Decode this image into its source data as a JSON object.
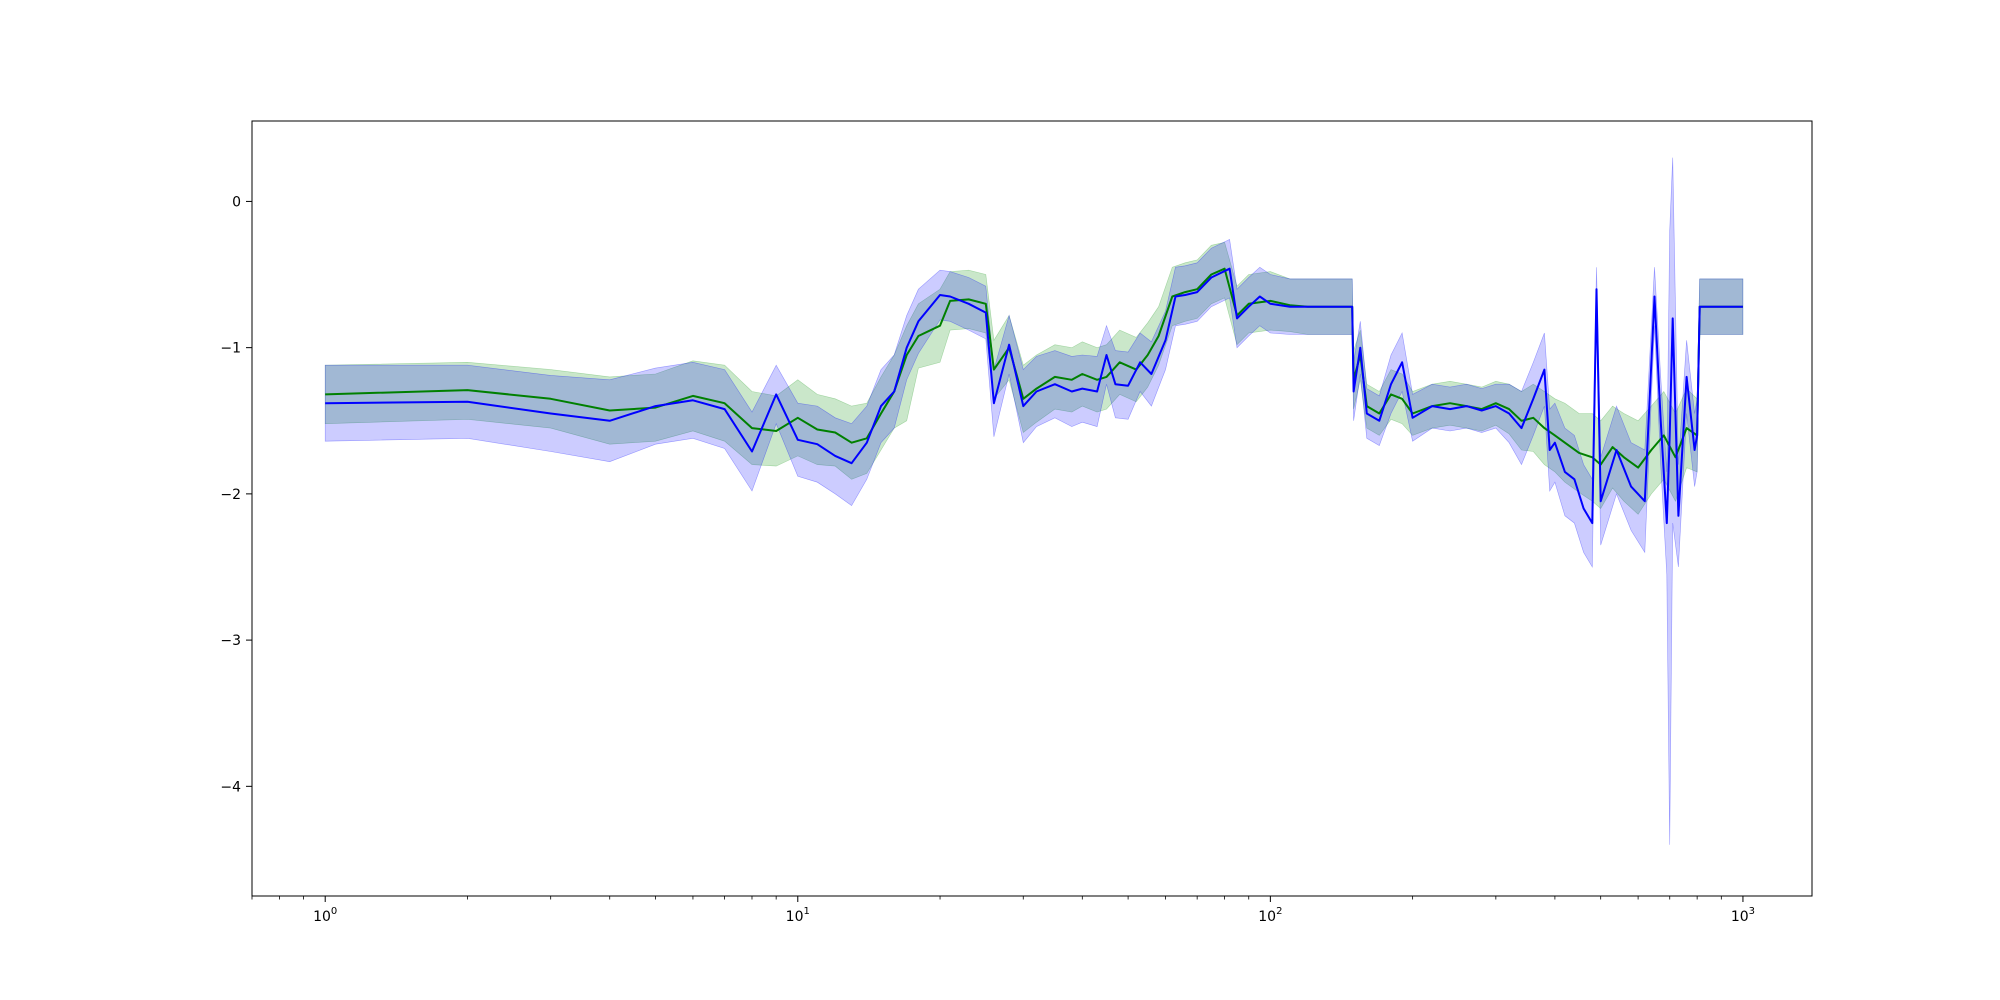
{
  "chart_data": {
    "type": "line",
    "title": "",
    "xlabel": "",
    "ylabel": "",
    "x_scale": "log",
    "xlim": [
      0.7,
      1400
    ],
    "ylim": [
      -4.75,
      0.55
    ],
    "x_ticks": [
      {
        "value": 1,
        "base": "10",
        "exp": "0"
      },
      {
        "value": 10,
        "base": "10",
        "exp": "1"
      },
      {
        "value": 100,
        "base": "10",
        "exp": "2"
      },
      {
        "value": 1000,
        "base": "10",
        "exp": "3"
      }
    ],
    "y_ticks": [
      {
        "value": 0,
        "label": "0"
      },
      {
        "value": -1,
        "label": "−1"
      },
      {
        "value": -2,
        "label": "−2"
      },
      {
        "value": -3,
        "label": "−3"
      },
      {
        "value": -4,
        "label": "−4"
      }
    ],
    "grid": false,
    "legend": "none",
    "series": [
      {
        "color": "#008000",
        "band_color": "#2ca02c",
        "band_opacity": 0.25,
        "points": [
          [
            1,
            -1.32,
            -1.12,
            -1.52
          ],
          [
            2,
            -1.29,
            -1.1,
            -1.49
          ],
          [
            3,
            -1.35,
            -1.15,
            -1.55
          ],
          [
            4,
            -1.43,
            -1.2,
            -1.66
          ],
          [
            5,
            -1.41,
            -1.18,
            -1.64
          ],
          [
            6,
            -1.33,
            -1.09,
            -1.57
          ],
          [
            7,
            -1.38,
            -1.12,
            -1.64
          ],
          [
            8,
            -1.55,
            -1.3,
            -1.8
          ],
          [
            9,
            -1.57,
            -1.33,
            -1.81
          ],
          [
            10,
            -1.48,
            -1.22,
            -1.74
          ],
          [
            11,
            -1.56,
            -1.32,
            -1.8
          ],
          [
            12,
            -1.58,
            -1.35,
            -1.81
          ],
          [
            13,
            -1.65,
            -1.4,
            -1.9
          ],
          [
            14,
            -1.62,
            -1.38,
            -1.86
          ],
          [
            15,
            -1.45,
            -1.2,
            -1.7
          ],
          [
            16,
            -1.3,
            -1.05,
            -1.55
          ],
          [
            17,
            -1.05,
            -0.85,
            -1.5
          ],
          [
            18,
            -0.92,
            -0.7,
            -1.14
          ],
          [
            20,
            -0.85,
            -0.6,
            -1.1
          ],
          [
            21,
            -0.68,
            -0.48,
            -0.88
          ],
          [
            23,
            -0.67,
            -0.47,
            -0.87
          ],
          [
            25,
            -0.7,
            -0.5,
            -0.9
          ],
          [
            26,
            -1.15,
            -0.95,
            -1.35
          ],
          [
            28,
            -1.0,
            -0.78,
            -1.22
          ],
          [
            30,
            -1.35,
            -1.12,
            -1.58
          ],
          [
            32,
            -1.28,
            -1.05,
            -1.51
          ],
          [
            35,
            -1.2,
            -0.98,
            -1.42
          ],
          [
            38,
            -1.22,
            -1.0,
            -1.44
          ],
          [
            40,
            -1.18,
            -0.96,
            -1.4
          ],
          [
            43,
            -1.22,
            -1.0,
            -1.44
          ],
          [
            45,
            -1.2,
            -0.98,
            -1.42
          ],
          [
            48,
            -1.1,
            -0.88,
            -1.32
          ],
          [
            52,
            -1.15,
            -0.93,
            -1.37
          ],
          [
            55,
            -1.05,
            -0.83,
            -1.27
          ],
          [
            58,
            -0.92,
            -0.72,
            -1.12
          ],
          [
            62,
            -0.65,
            -0.45,
            -0.85
          ],
          [
            66,
            -0.62,
            -0.42,
            -0.82
          ],
          [
            70,
            -0.6,
            -0.4,
            -0.8
          ],
          [
            75,
            -0.5,
            -0.3,
            -0.7
          ],
          [
            80,
            -0.46,
            -0.28,
            -0.66
          ],
          [
            85,
            -0.78,
            -0.58,
            -0.98
          ],
          [
            90,
            -0.7,
            -0.5,
            -0.9
          ],
          [
            100,
            -0.68,
            -0.48,
            -0.88
          ],
          [
            110,
            -0.71,
            -0.53,
            -0.89
          ],
          [
            120,
            -0.72,
            -0.53,
            -0.91
          ],
          [
            149,
            -0.72,
            -0.53,
            -0.91
          ],
          [
            150,
            -1.22,
            -1.02,
            -1.42
          ],
          [
            155,
            -1.05,
            -0.88,
            -1.22
          ],
          [
            160,
            -1.4,
            -1.25,
            -1.55
          ],
          [
            170,
            -1.45,
            -1.3,
            -1.6
          ],
          [
            180,
            -1.32,
            -1.15,
            -1.49
          ],
          [
            190,
            -1.35,
            -1.18,
            -1.52
          ],
          [
            200,
            -1.45,
            -1.3,
            -1.6
          ],
          [
            220,
            -1.4,
            -1.25,
            -1.55
          ],
          [
            240,
            -1.38,
            -1.23,
            -1.53
          ],
          [
            260,
            -1.4,
            -1.25,
            -1.55
          ],
          [
            280,
            -1.42,
            -1.27,
            -1.57
          ],
          [
            300,
            -1.38,
            -1.23,
            -1.53
          ],
          [
            320,
            -1.42,
            -1.25,
            -1.59
          ],
          [
            340,
            -1.5,
            -1.3,
            -1.7
          ],
          [
            360,
            -1.48,
            -1.25,
            -1.71
          ],
          [
            380,
            -1.55,
            -1.3,
            -1.8
          ],
          [
            400,
            -1.6,
            -1.35,
            -1.85
          ],
          [
            420,
            -1.65,
            -1.38,
            -1.92
          ],
          [
            450,
            -1.72,
            -1.45,
            -1.99
          ],
          [
            480,
            -1.75,
            -1.45,
            -2.05
          ],
          [
            500,
            -1.8,
            -1.5,
            -2.1
          ],
          [
            530,
            -1.68,
            -1.4,
            -1.96
          ],
          [
            560,
            -1.75,
            -1.45,
            -2.05
          ],
          [
            600,
            -1.82,
            -1.5,
            -2.14
          ],
          [
            640,
            -1.7,
            -1.4,
            -2.0
          ],
          [
            680,
            -1.6,
            -1.3,
            -1.9
          ],
          [
            720,
            -1.75,
            -1.45,
            -2.05
          ],
          [
            760,
            -1.55,
            -1.28,
            -1.82
          ],
          [
            800,
            -1.6,
            -1.35,
            -1.85
          ],
          [
            810,
            -0.72,
            -0.53,
            -0.91
          ],
          [
            1000,
            -0.72,
            -0.53,
            -0.91
          ]
        ]
      },
      {
        "color": "#0000ff",
        "band_color": "#0000ff",
        "band_opacity": 0.2,
        "points": [
          [
            1,
            -1.38,
            -1.12,
            -1.64
          ],
          [
            2,
            -1.37,
            -1.12,
            -1.62
          ],
          [
            3,
            -1.45,
            -1.19,
            -1.71
          ],
          [
            4,
            -1.5,
            -1.22,
            -1.78
          ],
          [
            5,
            -1.4,
            -1.14,
            -1.66
          ],
          [
            6,
            -1.36,
            -1.1,
            -1.62
          ],
          [
            7,
            -1.42,
            -1.15,
            -1.69
          ],
          [
            8,
            -1.71,
            -1.44,
            -1.98
          ],
          [
            9,
            -1.32,
            -1.12,
            -1.52
          ],
          [
            10,
            -1.63,
            -1.38,
            -1.88
          ],
          [
            11,
            -1.66,
            -1.4,
            -1.92
          ],
          [
            12,
            -1.74,
            -1.48,
            -2.0
          ],
          [
            13,
            -1.79,
            -1.52,
            -2.08
          ],
          [
            14,
            -1.65,
            -1.4,
            -1.9
          ],
          [
            15,
            -1.4,
            -1.15,
            -1.65
          ],
          [
            16,
            -1.3,
            -1.05,
            -1.55
          ],
          [
            17,
            -1.0,
            -0.78,
            -1.22
          ],
          [
            18,
            -0.82,
            -0.6,
            -1.04
          ],
          [
            20,
            -0.64,
            -0.47,
            -0.81
          ],
          [
            21,
            -0.65,
            -0.48,
            -0.82
          ],
          [
            23,
            -0.7,
            -0.52,
            -0.88
          ],
          [
            25,
            -0.76,
            -0.58,
            -0.94
          ],
          [
            26,
            -1.38,
            -1.15,
            -1.61
          ],
          [
            28,
            -0.98,
            -0.78,
            -1.18
          ],
          [
            30,
            -1.4,
            -1.15,
            -1.65
          ],
          [
            32,
            -1.3,
            -1.06,
            -1.54
          ],
          [
            35,
            -1.25,
            -1.02,
            -1.48
          ],
          [
            38,
            -1.3,
            -1.06,
            -1.54
          ],
          [
            40,
            -1.28,
            -1.05,
            -1.51
          ],
          [
            43,
            -1.3,
            -1.06,
            -1.54
          ],
          [
            45,
            -1.05,
            -0.85,
            -1.25
          ],
          [
            47,
            -1.25,
            -1.02,
            -1.48
          ],
          [
            50,
            -1.26,
            -1.03,
            -1.49
          ],
          [
            53,
            -1.1,
            -0.9,
            -1.3
          ],
          [
            56,
            -1.18,
            -0.96,
            -1.4
          ],
          [
            60,
            -0.95,
            -0.75,
            -1.15
          ],
          [
            63,
            -0.65,
            -0.45,
            -0.85
          ],
          [
            66,
            -0.64,
            -0.44,
            -0.84
          ],
          [
            70,
            -0.62,
            -0.42,
            -0.82
          ],
          [
            75,
            -0.52,
            -0.32,
            -0.72
          ],
          [
            82,
            -0.46,
            -0.26,
            -0.66
          ],
          [
            85,
            -0.8,
            -0.6,
            -1.0
          ],
          [
            90,
            -0.72,
            -0.52,
            -0.92
          ],
          [
            95,
            -0.65,
            -0.45,
            -0.85
          ],
          [
            100,
            -0.7,
            -0.5,
            -0.9
          ],
          [
            110,
            -0.72,
            -0.53,
            -0.91
          ],
          [
            120,
            -0.72,
            -0.53,
            -0.91
          ],
          [
            149,
            -0.72,
            -0.53,
            -0.91
          ],
          [
            150,
            -1.3,
            -1.1,
            -1.5
          ],
          [
            155,
            -1.0,
            -0.82,
            -1.18
          ],
          [
            160,
            -1.45,
            -1.28,
            -1.62
          ],
          [
            170,
            -1.5,
            -1.33,
            -1.67
          ],
          [
            180,
            -1.25,
            -1.05,
            -1.45
          ],
          [
            190,
            -1.1,
            -0.9,
            -1.3
          ],
          [
            200,
            -1.48,
            -1.32,
            -1.64
          ],
          [
            220,
            -1.4,
            -1.25,
            -1.55
          ],
          [
            240,
            -1.42,
            -1.27,
            -1.57
          ],
          [
            260,
            -1.4,
            -1.25,
            -1.55
          ],
          [
            280,
            -1.43,
            -1.28,
            -1.58
          ],
          [
            300,
            -1.4,
            -1.25,
            -1.55
          ],
          [
            320,
            -1.45,
            -1.25,
            -1.65
          ],
          [
            340,
            -1.55,
            -1.3,
            -1.8
          ],
          [
            360,
            -1.35,
            -1.1,
            -1.6
          ],
          [
            380,
            -1.15,
            -0.9,
            -1.4
          ],
          [
            390,
            -1.7,
            -1.42,
            -1.98
          ],
          [
            400,
            -1.65,
            -1.38,
            -1.92
          ],
          [
            420,
            -1.85,
            -1.55,
            -2.15
          ],
          [
            440,
            -1.9,
            -1.6,
            -2.2
          ],
          [
            460,
            -2.1,
            -1.8,
            -2.4
          ],
          [
            480,
            -2.2,
            -1.9,
            -2.5
          ],
          [
            490,
            -0.6,
            -0.45,
            -0.75
          ],
          [
            500,
            -2.05,
            -1.75,
            -2.35
          ],
          [
            540,
            -1.7,
            -1.4,
            -2.0
          ],
          [
            580,
            -1.95,
            -1.65,
            -2.25
          ],
          [
            620,
            -2.05,
            -1.7,
            -2.4
          ],
          [
            650,
            -0.65,
            -0.45,
            -0.85
          ],
          [
            670,
            -1.5,
            -1.2,
            -1.8
          ],
          [
            690,
            -2.2,
            -1.85,
            -2.55
          ],
          [
            700,
            -1.6,
            -0.2,
            -4.4
          ],
          [
            710,
            -0.8,
            0.3,
            -2.2
          ],
          [
            730,
            -2.15,
            -1.8,
            -2.5
          ],
          [
            760,
            -1.2,
            -0.95,
            -1.45
          ],
          [
            790,
            -1.7,
            -1.45,
            -1.95
          ],
          [
            800,
            -1.6,
            -1.35,
            -1.85
          ],
          [
            810,
            -0.72,
            -0.53,
            -0.91
          ],
          [
            1000,
            -0.72,
            -0.53,
            -0.91
          ]
        ]
      }
    ]
  }
}
